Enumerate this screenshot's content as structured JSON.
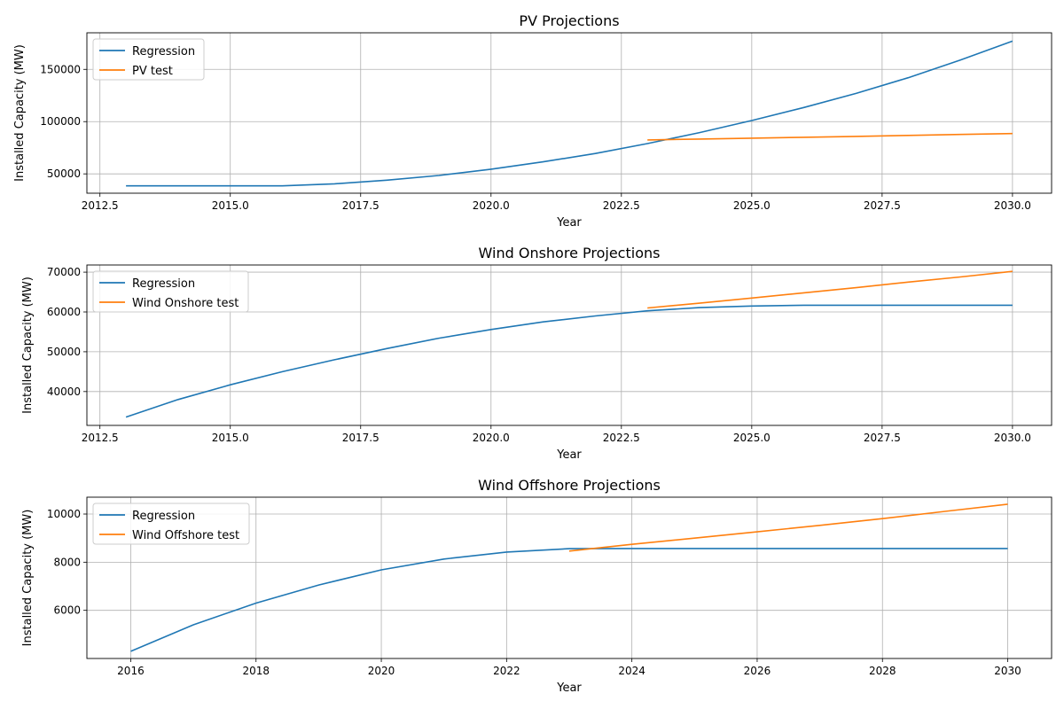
{
  "chart_data": [
    {
      "type": "line",
      "title": "PV Projections",
      "xlabel": "Year",
      "ylabel": "Installed Capacity (MW)",
      "xlim": [
        2012.25,
        2030.75
      ],
      "ylim": [
        31500,
        185000
      ],
      "xticks": [
        2012.5,
        2015.0,
        2017.5,
        2020.0,
        2022.5,
        2025.0,
        2027.5,
        2030.0
      ],
      "xtick_labels": [
        "2012.5",
        "2015.0",
        "2017.5",
        "2020.0",
        "2022.5",
        "2025.0",
        "2027.5",
        "2030.0"
      ],
      "yticks": [
        50000,
        100000,
        150000
      ],
      "ytick_labels": [
        "50000",
        "100000",
        "150000"
      ],
      "grid": true,
      "legend": "top-left",
      "colors": [
        "#1f77b4",
        "#ff7f0e"
      ],
      "series": [
        {
          "name": "Regression",
          "x": [
            2013,
            2014,
            2015,
            2016,
            2017,
            2018,
            2019,
            2020,
            2021,
            2022,
            2023,
            2024,
            2025,
            2026,
            2027,
            2028,
            2029,
            2030
          ],
          "y": [
            38500,
            38500,
            38500,
            38500,
            40500,
            44000,
            48500,
            54500,
            61500,
            69500,
            79000,
            89500,
            101000,
            113500,
            127000,
            142000,
            159000,
            177000
          ]
        },
        {
          "name": "PV test",
          "x": [
            2023,
            2024,
            2025,
            2026,
            2027,
            2028,
            2029,
            2030
          ],
          "y": [
            82500,
            83300,
            84200,
            85000,
            85900,
            86800,
            87700,
            88600
          ]
        }
      ]
    },
    {
      "type": "line",
      "title": "Wind Onshore Projections",
      "xlabel": "Year",
      "ylabel": "Installed Capacity (MW)",
      "xlim": [
        2012.25,
        2030.75
      ],
      "ylim": [
        31500,
        71800
      ],
      "xticks": [
        2012.5,
        2015.0,
        2017.5,
        2020.0,
        2022.5,
        2025.0,
        2027.5,
        2030.0
      ],
      "xtick_labels": [
        "2012.5",
        "2015.0",
        "2017.5",
        "2020.0",
        "2022.5",
        "2025.0",
        "2027.5",
        "2030.0"
      ],
      "yticks": [
        40000,
        50000,
        60000,
        70000
      ],
      "ytick_labels": [
        "40000",
        "50000",
        "60000",
        "70000"
      ],
      "grid": true,
      "legend": "top-left",
      "colors": [
        "#1f77b4",
        "#ff7f0e"
      ],
      "series": [
        {
          "name": "Regression",
          "x": [
            2013,
            2014,
            2015,
            2016,
            2017,
            2018,
            2019,
            2020,
            2021,
            2022,
            2023,
            2024,
            2025,
            2026,
            2027,
            2028,
            2029,
            2030
          ],
          "y": [
            33600,
            38000,
            41700,
            45000,
            48000,
            50800,
            53400,
            55600,
            57500,
            59000,
            60300,
            61100,
            61500,
            61700,
            61700,
            61700,
            61700,
            61700
          ]
        },
        {
          "name": "Wind Onshore test",
          "x": [
            2023,
            2024,
            2025,
            2026,
            2027,
            2028,
            2029,
            2030
          ],
          "y": [
            61000,
            62200,
            63500,
            64800,
            66100,
            67500,
            68800,
            70200
          ]
        }
      ]
    },
    {
      "type": "line",
      "title": "Wind Offshore Projections",
      "xlabel": "Year",
      "ylabel": "Installed Capacity (MW)",
      "xlim": [
        2015.3,
        2030.7
      ],
      "ylim": [
        4000,
        10700
      ],
      "xticks": [
        2016,
        2018,
        2020,
        2022,
        2024,
        2026,
        2028,
        2030
      ],
      "xtick_labels": [
        "2016",
        "2018",
        "2020",
        "2022",
        "2024",
        "2026",
        "2028",
        "2030"
      ],
      "yticks": [
        6000,
        8000,
        10000
      ],
      "ytick_labels": [
        "6000",
        "8000",
        "10000"
      ],
      "grid": true,
      "legend": "top-left",
      "colors": [
        "#1f77b4",
        "#ff7f0e"
      ],
      "series": [
        {
          "name": "Regression",
          "x": [
            2016,
            2017,
            2018,
            2019,
            2020,
            2021,
            2022,
            2023,
            2024,
            2025,
            2026,
            2027,
            2028,
            2029,
            2030
          ],
          "y": [
            4300,
            5400,
            6300,
            7050,
            7680,
            8130,
            8420,
            8560,
            8570,
            8570,
            8570,
            8570,
            8570,
            8570,
            8570
          ]
        },
        {
          "name": "Wind Offshore test",
          "x": [
            2023,
            2024,
            2025,
            2026,
            2027,
            2028,
            2029,
            2030
          ],
          "y": [
            8460,
            8740,
            9000,
            9260,
            9530,
            9810,
            10110,
            10410
          ]
        }
      ]
    }
  ]
}
